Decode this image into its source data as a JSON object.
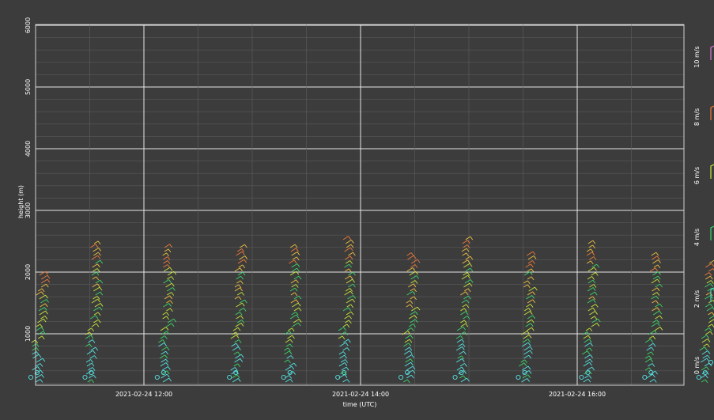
{
  "chart_data": {
    "type": "wind-barb profile plot",
    "xlabel": "time (UTC)",
    "ylabel": "height (m)",
    "ylim": [
      0,
      6000
    ],
    "y_ticks": [
      1000,
      2000,
      3000,
      4000,
      5000,
      6000
    ],
    "x_ticks": [
      "2021-02-24 12:00",
      "2021-02-24 14:00",
      "2021-02-24 16:00"
    ],
    "legend": {
      "placement": "right",
      "entries": [
        "0 m/s",
        "2 m/s",
        "4 m/s",
        "6 m/s",
        "8 m/s",
        "10 m/s"
      ],
      "colors": [
        "#55e6e6",
        "#4fd4c0",
        "#3bd66a",
        "#c8e83a",
        "#f07a3a",
        "#d878d8"
      ]
    },
    "grid": true,
    "profiles_count_label": "",
    "profiles": [
      {
        "time": "11:00",
        "top_height": 1990
      },
      {
        "time": "11:30",
        "top_height": 2520
      },
      {
        "time": "12:10",
        "top_height": 2410
      },
      {
        "time": "12:50",
        "top_height": 2420
      },
      {
        "time": "13:20",
        "top_height": 2440
      },
      {
        "time": "13:50",
        "top_height": 2530
      },
      {
        "time": "14:25",
        "top_height": 2320
      },
      {
        "time": "14:55",
        "top_height": 2560
      },
      {
        "time": "15:30",
        "top_height": 2330
      },
      {
        "time": "16:05",
        "top_height": 2470
      },
      {
        "time": "16:40",
        "top_height": 2300
      },
      {
        "time": "17:10",
        "top_height": 2180
      }
    ]
  }
}
